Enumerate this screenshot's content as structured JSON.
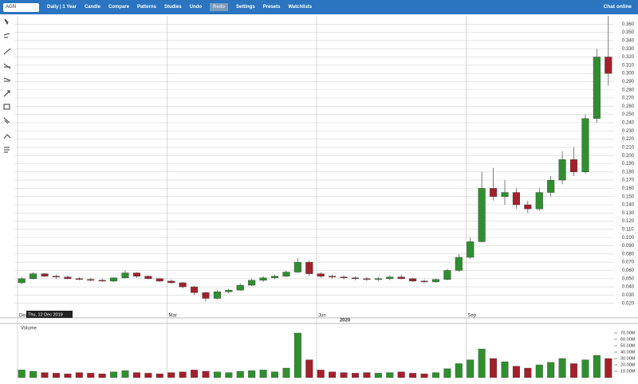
{
  "toolbar": {
    "symbol": "AGN",
    "periodicity": "Daily | 1 Year",
    "buttons": [
      "Candle",
      "Compare",
      "Patterns",
      "Studies",
      "Undo",
      "Redo",
      "Settings",
      "Presets",
      "Watchlists"
    ],
    "chat": "Chat online"
  },
  "chart_data": {
    "type": "candlestick",
    "categories": [
      "Dec",
      null,
      null,
      null,
      null,
      null,
      null,
      null,
      null,
      null,
      null,
      null,
      null,
      "Mar",
      null,
      null,
      null,
      null,
      null,
      null,
      null,
      null,
      null,
      null,
      null,
      null,
      "Jun",
      null,
      null,
      null,
      null,
      null,
      null,
      null,
      null,
      null,
      null,
      null,
      null,
      "Sep",
      null,
      null,
      null,
      null,
      null,
      null,
      null,
      null,
      null,
      null,
      null,
      null
    ],
    "year_label": "2020",
    "crosshair_label": "Thu, 12 Dec 2019",
    "open": [
      0.045,
      0.05,
      0.056,
      0.053,
      0.052,
      0.05,
      0.049,
      0.048,
      0.047,
      0.051,
      0.057,
      0.053,
      0.05,
      0.047,
      0.045,
      0.04,
      0.033,
      0.026,
      0.034,
      0.036,
      0.042,
      0.048,
      0.051,
      0.053,
      0.058,
      0.07,
      0.056,
      0.053,
      0.052,
      0.051,
      0.05,
      0.049,
      0.05,
      0.052,
      0.05,
      0.047,
      0.046,
      0.049,
      0.06,
      0.076,
      0.095,
      0.16,
      0.15,
      0.155,
      0.14,
      0.135,
      0.155,
      0.17,
      0.195,
      0.18,
      0.245,
      0.32
    ],
    "high": [
      0.052,
      0.058,
      0.057,
      0.055,
      0.054,
      0.052,
      0.051,
      0.05,
      0.052,
      0.06,
      0.058,
      0.054,
      0.051,
      0.049,
      0.046,
      0.041,
      0.034,
      0.036,
      0.038,
      0.044,
      0.05,
      0.053,
      0.055,
      0.06,
      0.075,
      0.072,
      0.058,
      0.055,
      0.054,
      0.053,
      0.052,
      0.052,
      0.054,
      0.055,
      0.051,
      0.049,
      0.05,
      0.062,
      0.08,
      0.1,
      0.18,
      0.185,
      0.17,
      0.16,
      0.145,
      0.16,
      0.175,
      0.205,
      0.21,
      0.25,
      0.33,
      0.37
    ],
    "low": [
      0.043,
      0.049,
      0.052,
      0.05,
      0.049,
      0.048,
      0.047,
      0.046,
      0.046,
      0.05,
      0.051,
      0.049,
      0.046,
      0.044,
      0.038,
      0.03,
      0.022,
      0.025,
      0.032,
      0.035,
      0.041,
      0.046,
      0.049,
      0.052,
      0.057,
      0.053,
      0.051,
      0.05,
      0.049,
      0.048,
      0.047,
      0.047,
      0.048,
      0.049,
      0.046,
      0.045,
      0.045,
      0.048,
      0.058,
      0.074,
      0.094,
      0.145,
      0.14,
      0.135,
      0.13,
      0.133,
      0.15,
      0.165,
      0.175,
      0.178,
      0.24,
      0.285
    ],
    "close": [
      0.05,
      0.056,
      0.053,
      0.052,
      0.05,
      0.049,
      0.048,
      0.047,
      0.051,
      0.057,
      0.053,
      0.05,
      0.047,
      0.045,
      0.04,
      0.033,
      0.026,
      0.034,
      0.036,
      0.042,
      0.048,
      0.051,
      0.053,
      0.058,
      0.07,
      0.056,
      0.053,
      0.052,
      0.051,
      0.05,
      0.049,
      0.05,
      0.052,
      0.05,
      0.047,
      0.046,
      0.049,
      0.06,
      0.076,
      0.095,
      0.16,
      0.15,
      0.155,
      0.14,
      0.135,
      0.155,
      0.17,
      0.195,
      0.18,
      0.245,
      0.32,
      0.3
    ],
    "ylim": [
      0.01,
      0.37
    ],
    "yticks": [
      {
        "value": 0.02,
        "label": "0.020"
      },
      {
        "value": 0.03,
        "label": "0.030"
      },
      {
        "value": 0.04,
        "label": "0.040"
      },
      {
        "value": 0.05,
        "label": "0.050"
      },
      {
        "value": 0.06,
        "label": "0.060"
      },
      {
        "value": 0.07,
        "label": "0.070"
      },
      {
        "value": 0.08,
        "label": "0.080"
      },
      {
        "value": 0.09,
        "label": "0.090"
      },
      {
        "value": 0.1,
        "label": "0.100"
      },
      {
        "value": 0.11,
        "label": "0.110"
      },
      {
        "value": 0.12,
        "label": "0.120"
      },
      {
        "value": 0.13,
        "label": "0.130"
      },
      {
        "value": 0.14,
        "label": "0.140"
      },
      {
        "value": 0.15,
        "label": "0.150"
      },
      {
        "value": 0.16,
        "label": "0.160"
      },
      {
        "value": 0.17,
        "label": "0.170"
      },
      {
        "value": 0.18,
        "label": "0.180"
      },
      {
        "value": 0.19,
        "label": "0.190"
      },
      {
        "value": 0.2,
        "label": "0.200"
      },
      {
        "value": 0.21,
        "label": "0.210"
      },
      {
        "value": 0.22,
        "label": "0.220"
      },
      {
        "value": 0.23,
        "label": "0.230"
      },
      {
        "value": 0.24,
        "label": "0.240"
      },
      {
        "value": 0.25,
        "label": "0.250"
      },
      {
        "value": 0.26,
        "label": "0.260"
      },
      {
        "value": 0.27,
        "label": "0.270"
      },
      {
        "value": 0.28,
        "label": "0.280"
      },
      {
        "value": 0.29,
        "label": "0.290"
      },
      {
        "value": 0.3,
        "label": "0.300"
      },
      {
        "value": 0.31,
        "label": "0.310"
      },
      {
        "value": 0.32,
        "label": "0.320"
      },
      {
        "value": 0.33,
        "label": "0.330"
      },
      {
        "value": 0.34,
        "label": "0.340"
      },
      {
        "value": 0.35,
        "label": "0.350"
      },
      {
        "value": 0.36,
        "label": "0.360"
      }
    ],
    "up_color": "#2f8f2f",
    "down_color": "#a3202c",
    "grid": true,
    "volume": {
      "name": "Volume",
      "values": [
        12000000,
        10000000,
        8000000,
        7000000,
        6000000,
        8000000,
        7000000,
        6000000,
        9000000,
        11000000,
        8000000,
        7000000,
        6000000,
        8000000,
        9000000,
        12000000,
        10000000,
        9000000,
        8000000,
        10000000,
        11000000,
        12000000,
        9000000,
        15000000,
        70000000,
        28000000,
        12000000,
        9000000,
        8000000,
        7000000,
        8000000,
        7000000,
        8000000,
        9000000,
        7000000,
        6000000,
        8000000,
        14000000,
        22000000,
        28000000,
        45000000,
        30000000,
        25000000,
        18000000,
        15000000,
        20000000,
        24000000,
        30000000,
        22000000,
        28000000,
        35000000,
        30000000
      ],
      "ylim": [
        0,
        80000000
      ],
      "yticks": [
        {
          "value": 10000000,
          "label": "10.00M"
        },
        {
          "value": 20000000,
          "label": "20.00M"
        },
        {
          "value": 30000000,
          "label": "30.00M"
        },
        {
          "value": 40000000,
          "label": "40.00M"
        },
        {
          "value": 50000000,
          "label": "50.00M"
        },
        {
          "value": 60000000,
          "label": "60.00M"
        },
        {
          "value": 70000000,
          "label": "70.00M"
        }
      ]
    }
  }
}
